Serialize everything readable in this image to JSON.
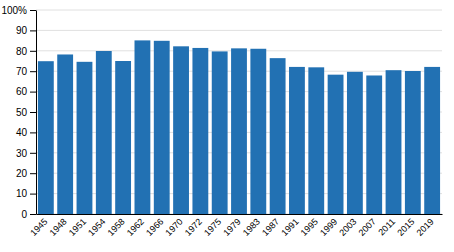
{
  "chart_data": {
    "type": "bar",
    "categories": [
      "1945",
      "1948",
      "1951",
      "1954",
      "1958",
      "1962",
      "1966",
      "1970",
      "1972",
      "1975",
      "1979",
      "1983",
      "1987",
      "1991",
      "1995",
      "1999",
      "2003",
      "2007",
      "2011",
      "2015",
      "2019"
    ],
    "values": [
      74.9,
      78.2,
      74.6,
      79.9,
      75.0,
      85.1,
      84.9,
      82.2,
      81.4,
      79.7,
      81.2,
      81.0,
      76.4,
      72.1,
      71.9,
      68.3,
      69.7,
      67.9,
      70.5,
      70.1,
      72.1
    ],
    "color": "#2271b3",
    "ylim": [
      0,
      100
    ],
    "yticks": [
      0,
      10,
      20,
      30,
      40,
      50,
      60,
      70,
      80,
      90,
      {
        "value": 100,
        "label": "100%"
      }
    ],
    "grid": true
  }
}
